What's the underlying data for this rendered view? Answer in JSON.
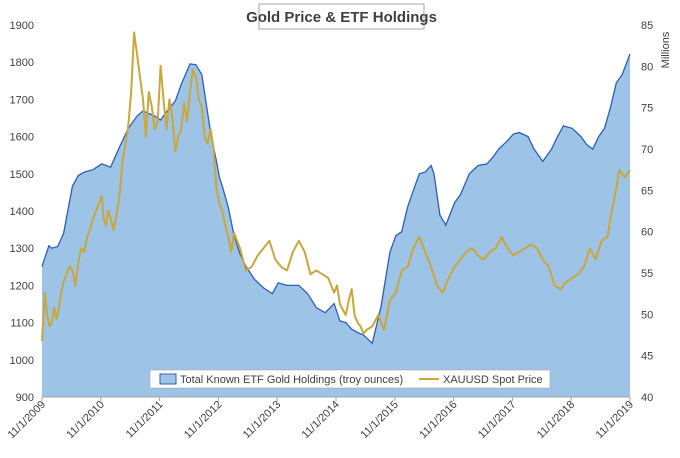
{
  "chart_data": {
    "type": "area+line",
    "title": "Gold Price & ETF Holdings",
    "y_left": {
      "min": 900,
      "max": 1900,
      "ticks": [
        900,
        1000,
        1100,
        1200,
        1300,
        1400,
        1500,
        1600,
        1700,
        1800,
        1900
      ]
    },
    "y_right": {
      "min": 40,
      "max": 85,
      "ticks": [
        40,
        45,
        50,
        55,
        60,
        65,
        70,
        75,
        80,
        85
      ],
      "unit_label": "Millions"
    },
    "x_axis": {
      "min": 2009.833,
      "max": 2019.833,
      "tick_labels": [
        "11/1/2009",
        "11/1/2010",
        "11/1/2011",
        "11/1/2012",
        "11/1/2013",
        "11/1/2014",
        "11/1/2015",
        "11/1/2016",
        "11/1/2017",
        "11/1/2018",
        "11/1/2019"
      ]
    },
    "legend": {
      "placement": "bottom"
    },
    "colors": {
      "area_fill": "#9dc3e6",
      "area_stroke": "#2e5fb4",
      "line": "#c9a73a"
    },
    "series": [
      {
        "name": "Total Known ETF Gold Holdings (troy ounces)",
        "axis": "right",
        "kind": "area",
        "x": [
          2009.833,
          2009.95,
          2010.0,
          2010.1,
          2010.2,
          2010.35,
          2010.45,
          2010.55,
          2010.7,
          2010.85,
          2011.0,
          2011.15,
          2011.3,
          2011.45,
          2011.55,
          2011.65,
          2011.75,
          2011.85,
          2011.95,
          2012.1,
          2012.2,
          2012.35,
          2012.45,
          2012.55,
          2012.7,
          2012.8,
          2012.85,
          2012.9,
          2013.0,
          2013.1,
          2013.2,
          2013.3,
          2013.45,
          2013.6,
          2013.75,
          2013.85,
          2014.0,
          2014.2,
          2014.35,
          2014.5,
          2014.65,
          2014.8,
          2014.9,
          2015.0,
          2015.1,
          2015.2,
          2015.3,
          2015.45,
          2015.6,
          2015.75,
          2015.85,
          2015.95,
          2016.05,
          2016.15,
          2016.25,
          2016.35,
          2016.45,
          2016.5,
          2016.6,
          2016.7,
          2016.85,
          2016.95,
          2017.1,
          2017.25,
          2017.4,
          2017.5,
          2017.6,
          2017.75,
          2017.85,
          2017.95,
          2018.1,
          2018.2,
          2018.35,
          2018.5,
          2018.6,
          2018.7,
          2018.85,
          2019.0,
          2019.1,
          2019.2,
          2019.3,
          2019.4,
          2019.5,
          2019.6,
          2019.7,
          2019.833
        ],
        "y": [
          55.8,
          58.3,
          58.0,
          58.2,
          59.8,
          65.5,
          66.8,
          67.2,
          67.5,
          68.2,
          67.8,
          70.2,
          72.5,
          74.0,
          74.6,
          74.3,
          74.0,
          73.5,
          74.5,
          75.8,
          77.8,
          80.3,
          80.2,
          79.0,
          72.0,
          68.5,
          66.6,
          65.5,
          63.0,
          59.5,
          57.3,
          55.8,
          54.2,
          53.2,
          52.5,
          53.8,
          53.5,
          53.5,
          52.5,
          50.8,
          50.2,
          51.3,
          49.2,
          49.0,
          48.2,
          47.8,
          47.5,
          46.5,
          51.0,
          57.5,
          59.5,
          60.0,
          63.0,
          65.0,
          67.0,
          67.2,
          68.0,
          67.0,
          62.0,
          60.8,
          63.5,
          64.5,
          67.0,
          68.0,
          68.2,
          69.0,
          70.0,
          71.0,
          71.8,
          72.0,
          71.5,
          70.0,
          68.5,
          70.0,
          71.5,
          72.8,
          72.5,
          71.5,
          70.5,
          70.0,
          71.5,
          72.5,
          75.0,
          78.0,
          79.0,
          81.5
        ]
      },
      {
        "name": "XAUUSD Spot Price",
        "axis": "left",
        "kind": "line",
        "x": [
          2009.833,
          2009.88,
          2009.92,
          2009.96,
          2010.0,
          2010.04,
          2010.08,
          2010.12,
          2010.16,
          2010.2,
          2010.25,
          2010.3,
          2010.35,
          2010.4,
          2010.45,
          2010.5,
          2010.55,
          2010.6,
          2010.65,
          2010.7,
          2010.75,
          2010.8,
          2010.85,
          2010.88,
          2010.92,
          2010.96,
          2011.0,
          2011.05,
          2011.1,
          2011.15,
          2011.2,
          2011.3,
          2011.35,
          2011.4,
          2011.45,
          2011.5,
          2011.55,
          2011.6,
          2011.65,
          2011.7,
          2011.75,
          2011.8,
          2011.85,
          2011.9,
          2011.95,
          2012.0,
          2012.05,
          2012.1,
          2012.15,
          2012.2,
          2012.25,
          2012.3,
          2012.35,
          2012.4,
          2012.45,
          2012.5,
          2012.55,
          2012.6,
          2012.65,
          2012.7,
          2012.75,
          2012.8,
          2012.85,
          2012.9,
          2012.95,
          2013.0,
          2013.05,
          2013.1,
          2013.2,
          2013.3,
          2013.4,
          2013.5,
          2013.6,
          2013.7,
          2013.8,
          2013.9,
          2014.0,
          2014.1,
          2014.2,
          2014.3,
          2014.4,
          2014.5,
          2014.6,
          2014.7,
          2014.8,
          2014.85,
          2014.9,
          2015.0,
          2015.05,
          2015.1,
          2015.15,
          2015.2,
          2015.25,
          2015.3,
          2015.35,
          2015.45,
          2015.55,
          2015.65,
          2015.75,
          2015.85,
          2015.95,
          2016.05,
          2016.15,
          2016.25,
          2016.35,
          2016.45,
          2016.55,
          2016.65,
          2016.75,
          2016.85,
          2016.95,
          2017.05,
          2017.15,
          2017.25,
          2017.35,
          2017.45,
          2017.55,
          2017.65,
          2017.75,
          2017.85,
          2017.95,
          2018.05,
          2018.15,
          2018.25,
          2018.35,
          2018.45,
          2018.55,
          2018.65,
          2018.75,
          2018.85,
          2018.95,
          2019.05,
          2019.15,
          2019.25,
          2019.35,
          2019.45,
          2019.5,
          2019.55,
          2019.6,
          2019.65,
          2019.7,
          2019.75,
          2019.833
        ],
        "y": [
          1050,
          1180,
          1120,
          1090,
          1100,
          1140,
          1110,
          1140,
          1180,
          1210,
          1230,
          1250,
          1240,
          1200,
          1260,
          1300,
          1290,
          1330,
          1350,
          1380,
          1400,
          1420,
          1440,
          1380,
          1360,
          1400,
          1380,
          1350,
          1390,
          1440,
          1530,
          1630,
          1720,
          1880,
          1820,
          1760,
          1700,
          1600,
          1720,
          1680,
          1620,
          1640,
          1790,
          1700,
          1620,
          1700,
          1650,
          1560,
          1600,
          1620,
          1690,
          1640,
          1720,
          1780,
          1760,
          1700,
          1680,
          1600,
          1580,
          1620,
          1570,
          1460,
          1420,
          1400,
          1360,
          1330,
          1290,
          1340,
          1300,
          1240,
          1250,
          1280,
          1300,
          1320,
          1270,
          1250,
          1240,
          1290,
          1320,
          1290,
          1230,
          1240,
          1230,
          1220,
          1180,
          1200,
          1150,
          1120,
          1160,
          1190,
          1120,
          1100,
          1090,
          1070,
          1080,
          1090,
          1120,
          1080,
          1160,
          1180,
          1240,
          1250,
          1300,
          1330,
          1290,
          1250,
          1200,
          1180,
          1220,
          1250,
          1270,
          1290,
          1300,
          1280,
          1270,
          1290,
          1300,
          1330,
          1300,
          1280,
          1290,
          1300,
          1310,
          1300,
          1270,
          1250,
          1200,
          1190,
          1210,
          1220,
          1230,
          1250,
          1300,
          1270,
          1320,
          1330,
          1380,
          1420,
          1460,
          1510,
          1500,
          1490,
          1510
        ]
      }
    ]
  }
}
